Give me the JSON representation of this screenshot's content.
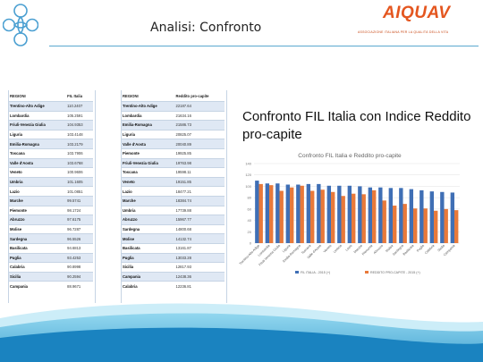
{
  "header": {
    "title": "Analisi: Confronto",
    "brand_name": "AIQUAV",
    "brand_tagline": "ASSOCIAZIONE ITALIANA PER LA QUALITÀ DELLA VITA"
  },
  "heading": "Confronto FIL Italia con Indice Reddito pro-capite",
  "colors": {
    "accent": "#5aa9cf",
    "brand": "#e4561f",
    "series1": "#3f6fb5",
    "series2": "#e8793a"
  },
  "table_fil": {
    "headers": [
      "REGIONI",
      "FIL Italia"
    ],
    "rows": [
      [
        "Trentino-Alto Adige",
        "110.2407"
      ],
      [
        "Lombardia",
        "105.2591"
      ],
      [
        "Friuli-Venezia Giulia",
        "104.9353"
      ],
      [
        "Liguria",
        "103.4148"
      ],
      [
        "Emilia-Romagna",
        "103.2179"
      ],
      [
        "Toscana",
        "103.7906"
      ],
      [
        "Valle d'Aosta",
        "103.6768"
      ],
      [
        "Veneto",
        "100.9606"
      ],
      [
        "Umbria",
        "101.1605"
      ],
      [
        "Lazio",
        "101.0851"
      ],
      [
        "Marche",
        "99.5741"
      ],
      [
        "Piemonte",
        "98.1724"
      ],
      [
        "Abruzzo",
        "97.6175"
      ],
      [
        "Molise",
        "96.7287"
      ],
      [
        "Sardegna",
        "96.5526"
      ],
      [
        "Basilicata",
        "94.6813"
      ],
      [
        "Puglia",
        "93.4253"
      ],
      [
        "Calabria",
        "90.8998"
      ],
      [
        "Sicilia",
        "90.2594"
      ],
      [
        "Campania",
        "88.9671"
      ]
    ]
  },
  "table_reddito": {
    "headers": [
      "REGIONI",
      "Reddito pro-capite"
    ],
    "rows": [
      [
        "Trentino-Alto Adige",
        "22187.64"
      ],
      [
        "Lombardia",
        "21634.16"
      ],
      [
        "Emilia-Romagna",
        "21586.73"
      ],
      [
        "Liguria",
        "20825.07"
      ],
      [
        "Valle d'Aosta",
        "20040.89"
      ],
      [
        "Piemonte",
        "19925.85"
      ],
      [
        "Friuli-Venezia Giulia",
        "19763.98"
      ],
      [
        "Toscana",
        "19598.11"
      ],
      [
        "Veneto",
        "19151.85"
      ],
      [
        "Lazio",
        "18477.21"
      ],
      [
        "Marche",
        "18384.74"
      ],
      [
        "Umbria",
        "17739.88"
      ],
      [
        "Abruzzo",
        "15967.77"
      ],
      [
        "Sardegna",
        "14800.68"
      ],
      [
        "Molise",
        "14132.74"
      ],
      [
        "Basilicata",
        "13161.87"
      ],
      [
        "Puglia",
        "13033.28"
      ],
      [
        "Sicilia",
        "12817.93"
      ],
      [
        "Campania",
        "12438.36"
      ],
      [
        "Calabria",
        "12236.81"
      ]
    ]
  },
  "chart_data": {
    "type": "bar",
    "title": "Confronto FIL Italia e Reddito pro-capite",
    "categories": [
      "Trentino-Alto Adige",
      "Lombardia",
      "Friuli-Venezia Giulia",
      "Liguria",
      "Emilia-Romagna",
      "Toscana",
      "Valle d'Aosta",
      "Veneto",
      "Umbria",
      "Lazio",
      "Marche",
      "Piemonte",
      "Abruzzo",
      "Molise",
      "Sardegna",
      "Basilicata",
      "Puglia",
      "Calabria",
      "Sicilia",
      "Campania"
    ],
    "series": [
      {
        "name": "FIL ITALIA - 2015 (+)",
        "values": [
          110,
          105,
          105,
          103,
          103,
          104,
          104,
          101,
          101,
          101,
          100,
          98,
          98,
          97,
          97,
          95,
          93,
          91,
          90,
          89
        ]
      },
      {
        "name": "REDDITO PRO-CAPITE - 2015 (+)",
        "values": [
          104,
          102,
          92,
          98,
          101,
          92,
          94,
          90,
          83,
          87,
          86,
          93,
          75,
          66,
          69,
          61,
          61,
          57,
          60,
          58
        ]
      }
    ],
    "ylim": [
      0,
      140
    ],
    "yticks": [
      0,
      20,
      40,
      60,
      80,
      100,
      120,
      140
    ],
    "legend_position": "bottom",
    "grid": true
  }
}
